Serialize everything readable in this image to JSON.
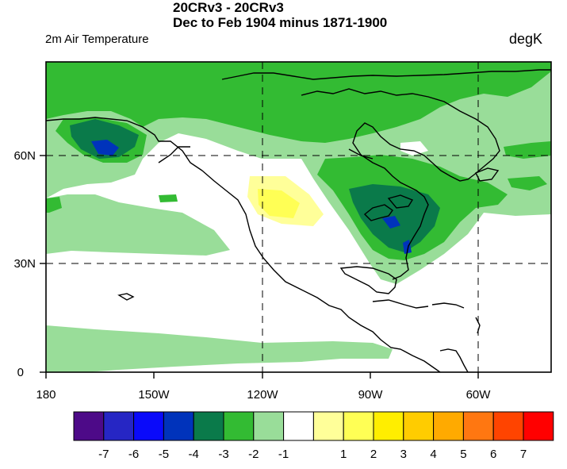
{
  "titles": {
    "line1": "20CRv3 - 20CRv3",
    "line2": "Dec to Feb 1904 minus 1871-1900",
    "left_string": "2m Air Temperature",
    "right_string": "degK"
  },
  "map": {
    "x_tick_labels": [
      "180",
      "150W",
      "120W",
      "90W",
      "60W"
    ],
    "y_tick_labels": [
      "0",
      "30N",
      "60N"
    ]
  },
  "colorbar": {
    "colors": [
      "#4d0a88",
      "#2626c4",
      "#0a0afa",
      "#0033bb",
      "#0a7a4a",
      "#33bb33",
      "#99dd99",
      "#ffffff",
      "#ffff99",
      "#ffff55",
      "#ffee00",
      "#ffcc00",
      "#ffaa00",
      "#ff7711",
      "#ff4400",
      "#ff0000"
    ],
    "labels": [
      "-7",
      "-6",
      "-5",
      "-4",
      "-3",
      "-2",
      "-1",
      "1",
      "2",
      "3",
      "4",
      "5",
      "6",
      "7"
    ]
  }
}
